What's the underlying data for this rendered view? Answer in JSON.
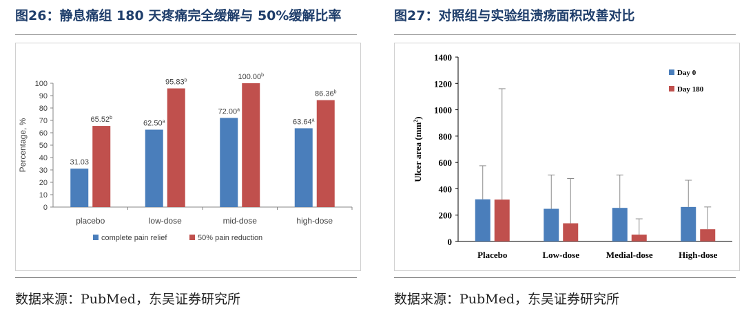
{
  "left_panel": {
    "figure_title": "图26：静息痛组 180 天疼痛完全缓解与 50%缓解比率",
    "source": "数据来源：PubMed，东吴证券研究所"
  },
  "right_panel": {
    "figure_title": "图27：对照组与实验组溃疡面积改善对比",
    "source": "数据来源：PubMed，东吴证券研究所"
  },
  "colors": {
    "blue": "#4a7ebb",
    "red": "#c0504d",
    "axis": "#868686",
    "title": "#1f3e6b"
  },
  "chart_data": [
    {
      "type": "bar",
      "categories": [
        "placebo",
        "low-dose",
        "mid-dose",
        "high-dose"
      ],
      "series": [
        {
          "name": "complete pain relief",
          "values": [
            31.03,
            62.5,
            72.0,
            63.64
          ],
          "labels": [
            "31.03",
            "62.50",
            "72.00",
            "63.64"
          ],
          "superscripts": [
            "",
            "a",
            "a",
            "a"
          ]
        },
        {
          "name": "50% pain reduction",
          "values": [
            65.52,
            95.83,
            100.0,
            86.36
          ],
          "labels": [
            "65.52",
            "95.83",
            "100.00",
            "86.36"
          ],
          "superscripts": [
            "b",
            "b",
            "b",
            "b"
          ]
        }
      ],
      "ylabel": "Percentage, %",
      "ylim": [
        0,
        100
      ],
      "yticks": [
        "0",
        "10",
        "20",
        "30",
        "40",
        "50",
        "60",
        "70",
        "80",
        "90",
        "100"
      ],
      "legend_position": "bottom",
      "grid": false
    },
    {
      "type": "bar",
      "categories": [
        "Placebo",
        "Low-dose",
        "Medial-dose",
        "High-dose"
      ],
      "series": [
        {
          "name": "Day 0",
          "values": [
            320,
            248,
            255,
            262
          ],
          "error_upper": [
            575,
            505,
            505,
            465
          ]
        },
        {
          "name": "Day 180",
          "values": [
            318,
            138,
            52,
            93
          ],
          "error_upper": [
            1160,
            478,
            172,
            262
          ]
        }
      ],
      "ylabel_main": "Ulcer area (mm",
      "ylabel_sup": "2",
      "ylabel_end": ")",
      "ylim": [
        0,
        1400
      ],
      "yticks": [
        "0",
        "200",
        "400",
        "600",
        "800",
        "1000",
        "1200",
        "1400"
      ],
      "legend_position": "top-right",
      "grid": false
    }
  ]
}
